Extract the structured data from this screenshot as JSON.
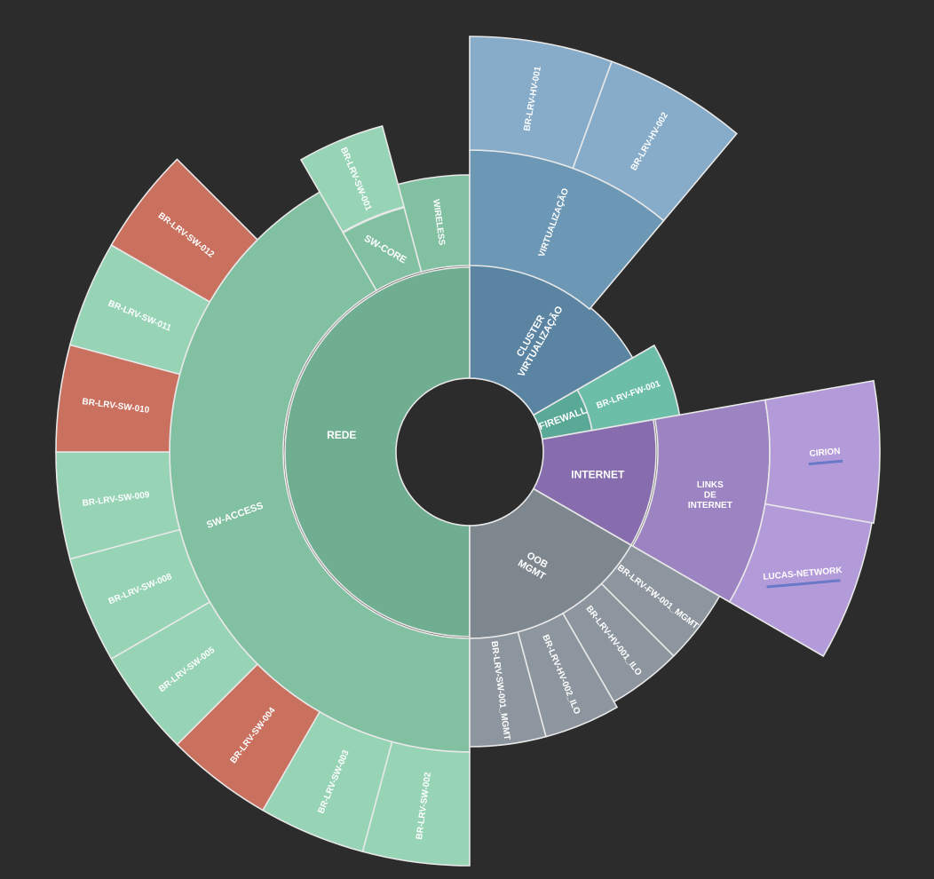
{
  "chart_data": {
    "type": "sunburst",
    "title": "",
    "rings": 3,
    "colors": {
      "background": "#2c2c2c",
      "stroke": "#e8e8e8",
      "rede_1": "#6fae90",
      "rede_2": "#82c0a2",
      "rede_3": "#97d4b6",
      "alert": "#c9705f",
      "virt_1": "#5a84a2",
      "virt_2": "#6d98b5",
      "virt_3": "#86acca",
      "fw_1": "#5aa896",
      "fw_3": "#6dbea8",
      "inet_1": "#886dae",
      "inet_2": "#9c84c3",
      "inet_3": "#b39ad9",
      "oob_1": "#7e868e",
      "oob_3": "#8d969e"
    },
    "nodes": [
      {
        "label": "REDE",
        "ring": 1,
        "from": 180,
        "to": 375,
        "color": "rede_1",
        "fs": 12
      },
      {
        "label": "CLUSTER\nVIRTUALIZAÇÃO",
        "ring": 1,
        "from": 0,
        "to": 60,
        "color": "virt_1",
        "fs": 11
      },
      {
        "label": "FIREWALL",
        "ring": 1,
        "from": 60,
        "to": 80,
        "color": "fw_1",
        "fs": 11
      },
      {
        "label": "INTERNET",
        "ring": 1,
        "from": 80,
        "to": 120,
        "color": "inet_1",
        "fs": 12
      },
      {
        "label": "OOB\nMGMT",
        "ring": 1,
        "from": 120,
        "to": 180,
        "color": "oob_1",
        "fs": 11
      },
      {
        "label": "SW-ACCESS",
        "ring": 2,
        "from": 180,
        "to": 330,
        "color": "rede_2",
        "fs": 11
      },
      {
        "label": "SW-CORE",
        "ring": 2,
        "from": 330,
        "to": 345,
        "color": "rede_2",
        "fs": 11
      },
      {
        "label": "WIRELESS",
        "ring": 2,
        "from": 345,
        "to": 360,
        "color": "rede_2",
        "fs": 10
      },
      {
        "label": "VIRTUALIZAÇÃO",
        "ring": 2,
        "from": 0,
        "to": 40,
        "color": "virt_2",
        "fs": 10
      },
      {
        "label": "LINKS\nDE\nINTERNET",
        "ring": 2,
        "from": 80,
        "to": 120,
        "color": "inet_2",
        "fs": 10
      },
      {
        "label": "BR-LRV-SW-002",
        "ring": 3,
        "from": 180,
        "to": 195,
        "color": "rede_3",
        "fs": 10
      },
      {
        "label": "BR-LRV-SW-003",
        "ring": 3,
        "from": 195,
        "to": 210,
        "color": "rede_3",
        "fs": 10
      },
      {
        "label": "BR-LRV-SW-004",
        "ring": 3,
        "from": 210,
        "to": 225,
        "color": "alert",
        "fs": 10
      },
      {
        "label": "BR-LRV-SW-005",
        "ring": 3,
        "from": 225,
        "to": 240,
        "color": "rede_3",
        "fs": 10
      },
      {
        "label": "BR-LRV-SW-008",
        "ring": 3,
        "from": 240,
        "to": 255,
        "color": "rede_3",
        "fs": 10
      },
      {
        "label": "BR-LRV-SW-009",
        "ring": 3,
        "from": 255,
        "to": 270,
        "color": "rede_3",
        "fs": 10
      },
      {
        "label": "BR-LRV-SW-010",
        "ring": 3,
        "from": 270,
        "to": 285,
        "color": "alert",
        "fs": 10
      },
      {
        "label": "BR-LRV-SW-011",
        "ring": 3,
        "from": 285,
        "to": 300,
        "color": "rede_3",
        "fs": 10
      },
      {
        "label": "BR-LRV-SW-012",
        "ring": 3,
        "from": 300,
        "to": 315,
        "color": "alert",
        "fs": 10
      },
      {
        "label": "BR-LRV-SW-001",
        "ring": 3,
        "from": 330,
        "to": 345,
        "color": "rede_3",
        "fs": 10
      },
      {
        "label": "BR-LRV-HV-001",
        "ring": 3,
        "from": 0,
        "to": 20,
        "color": "virt_3",
        "fs": 10
      },
      {
        "label": "BR-LRV-HV-002",
        "ring": 3,
        "from": 20,
        "to": 40,
        "color": "virt_3",
        "fs": 10
      },
      {
        "label": "BR-LRV-FW-001",
        "ring": 3,
        "from": 60,
        "to": 80,
        "color": "fw_3",
        "fs": 10
      },
      {
        "label": "CIRION",
        "ring": 3,
        "from": 80,
        "to": 100,
        "color": "inet_3",
        "fs": 10,
        "strike": true
      },
      {
        "label": "LUCAS-NETWORK",
        "ring": 3,
        "from": 100,
        "to": 120,
        "color": "inet_3",
        "fs": 10,
        "strike": true
      },
      {
        "label": "BR-LRV-FW-001_MGMT",
        "ring": 3,
        "from": 120,
        "to": 135,
        "color": "oob_3",
        "fs": 10
      },
      {
        "label": "BR-LRV-HV-001_ILO",
        "ring": 3,
        "from": 135,
        "to": 150,
        "color": "oob_3",
        "fs": 10
      },
      {
        "label": "BR-LRV-HV-002_ILO",
        "ring": 3,
        "from": 150,
        "to": 165,
        "color": "oob_3",
        "fs": 10
      },
      {
        "label": "BR-LRV-SW-001_MGMT",
        "ring": 3,
        "from": 165,
        "to": 180,
        "color": "oob_3",
        "fs": 10
      }
    ]
  }
}
